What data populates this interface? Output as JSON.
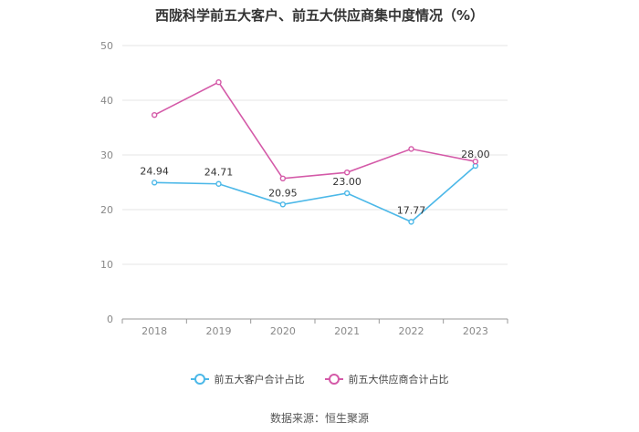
{
  "chart_data": {
    "type": "line",
    "title": "西陇科学前五大客户、前五大供应商集中度情况（%）",
    "categories": [
      "2018",
      "2019",
      "2020",
      "2021",
      "2022",
      "2023"
    ],
    "ylim": [
      0,
      50
    ],
    "yticks": [
      0,
      10,
      20,
      30,
      40,
      50
    ],
    "grid": true,
    "legend_position": "bottom",
    "series": [
      {
        "name": "前五大客户合计占比",
        "color": "#4cb8e8",
        "values": [
          24.94,
          24.71,
          20.95,
          23.0,
          17.77,
          28.0
        ],
        "labels": [
          "24.94",
          "24.71",
          "20.95",
          "23.00",
          "17.77",
          "28.00"
        ]
      },
      {
        "name": "前五大供应商合计占比",
        "color": "#d45aa8",
        "values": [
          37.3,
          43.3,
          25.7,
          26.8,
          31.1,
          28.8
        ],
        "labels": []
      }
    ],
    "source": "数据来源：恒生聚源"
  }
}
